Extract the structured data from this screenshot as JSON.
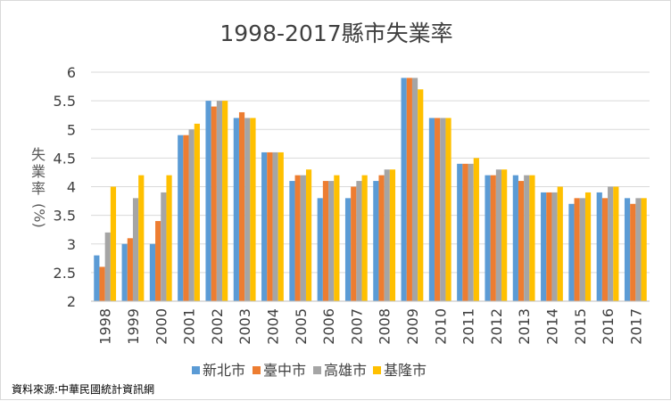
{
  "chart_data": {
    "type": "bar",
    "title": "1998-2017縣市失業率",
    "ylabel": "失業率(%)",
    "xlabel": "",
    "ylim": [
      2,
      6
    ],
    "yticks": [
      "2",
      "2.5",
      "3",
      "3.5",
      "4",
      "4.5",
      "5",
      "5.5",
      "6"
    ],
    "grid": true,
    "legend_position": "bottom",
    "categories": [
      "1998",
      "1999",
      "2000",
      "2001",
      "2002",
      "2003",
      "2004",
      "2005",
      "2006",
      "2007",
      "2008",
      "2009",
      "2010",
      "2011",
      "2012",
      "2013",
      "2014",
      "2015",
      "2016",
      "2017"
    ],
    "series": [
      {
        "name": "新北市",
        "color": "#5B9BD5",
        "values": [
          2.8,
          3.0,
          3.0,
          4.9,
          5.5,
          5.2,
          4.6,
          4.1,
          3.8,
          3.8,
          4.1,
          5.9,
          5.2,
          4.4,
          4.2,
          4.2,
          3.9,
          3.7,
          3.9,
          3.8
        ]
      },
      {
        "name": "臺中市",
        "color": "#ED7D31",
        "values": [
          2.6,
          3.1,
          3.4,
          4.9,
          5.4,
          5.3,
          4.6,
          4.2,
          4.1,
          4.0,
          4.2,
          5.9,
          5.2,
          4.4,
          4.2,
          4.1,
          3.9,
          3.8,
          3.8,
          3.7
        ]
      },
      {
        "name": "高雄市",
        "color": "#A5A5A5",
        "values": [
          3.2,
          3.8,
          3.9,
          5.0,
          5.5,
          5.2,
          4.6,
          4.2,
          4.1,
          4.1,
          4.3,
          5.9,
          5.2,
          4.4,
          4.3,
          4.2,
          3.9,
          3.8,
          4.0,
          3.8
        ]
      },
      {
        "name": "基隆市",
        "color": "#FFC000",
        "values": [
          4.0,
          4.2,
          4.2,
          5.1,
          5.5,
          5.2,
          4.6,
          4.3,
          4.2,
          4.2,
          4.3,
          5.7,
          5.2,
          4.5,
          4.3,
          4.2,
          4.0,
          3.9,
          4.0,
          3.8
        ]
      }
    ],
    "source_note": "資料來源:中華民國統計資訊網"
  }
}
